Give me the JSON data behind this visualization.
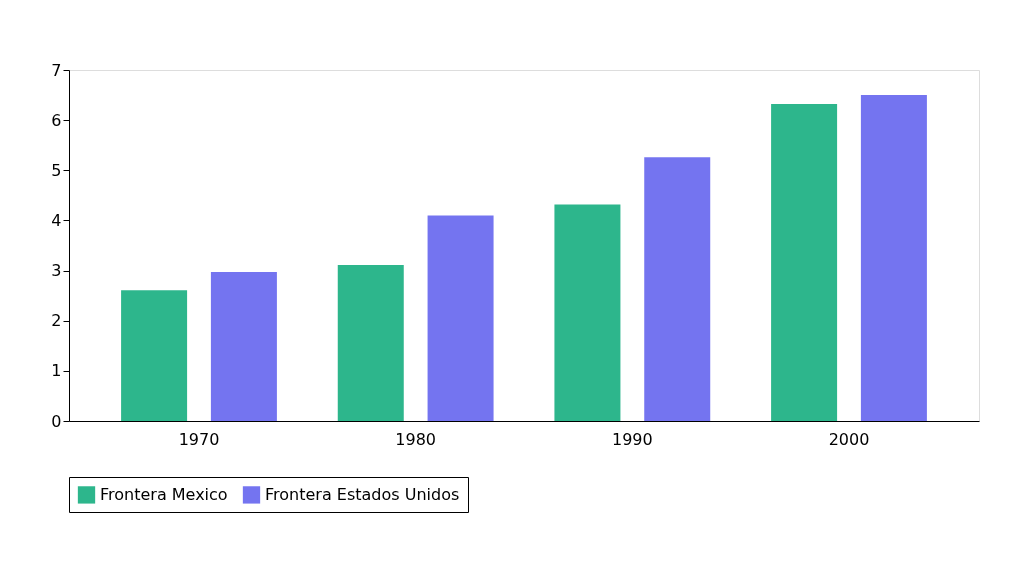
{
  "chart_data": {
    "type": "bar",
    "categories": [
      "1970",
      "1980",
      "1990",
      "2000"
    ],
    "series": [
      {
        "name": "Frontera Mexico",
        "color": "#2db68c",
        "values": [
          2.61,
          3.11,
          4.32,
          6.32
        ]
      },
      {
        "name": "Frontera Estados Unidos",
        "color": "#7474f0",
        "values": [
          2.97,
          4.1,
          5.26,
          6.5
        ]
      }
    ],
    "ylim": [
      0,
      7
    ],
    "yticks": [
      0,
      1,
      2,
      3,
      4,
      5,
      6,
      7
    ],
    "grid": false,
    "legend": "bottom"
  }
}
